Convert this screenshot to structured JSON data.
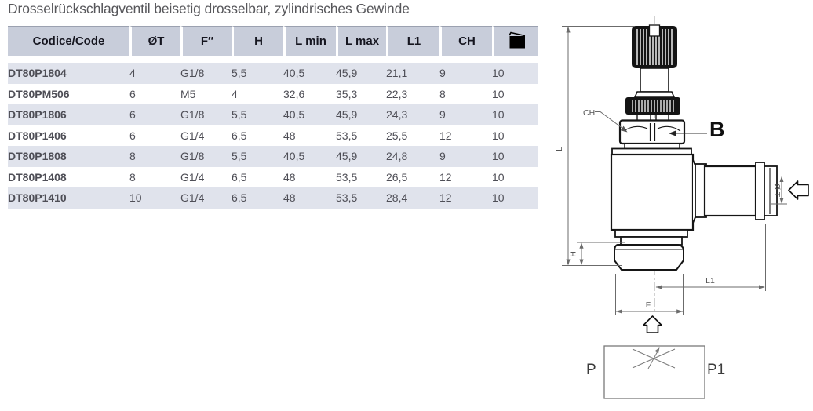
{
  "title": "Drosselrückschlagventil beisetig drosselbar, zylindrisches Gewinde",
  "table": {
    "columns": [
      "Codice/Code",
      "ØT",
      "F″",
      "H",
      "L min",
      "L max",
      "L1",
      "CH"
    ],
    "qty_column_icon": "package-icon",
    "rows": [
      [
        "DT80P1804",
        "4",
        "G1/8",
        "5,5",
        "40,5",
        "45,9",
        "21,1",
        "9",
        "10"
      ],
      [
        "DT80PM506",
        "6",
        "M5",
        "4",
        "32,6",
        "35,3",
        "22,3",
        "8",
        "10"
      ],
      [
        "DT80P1806",
        "6",
        "G1/8",
        "5,5",
        "40,5",
        "45,9",
        "24,3",
        "9",
        "10"
      ],
      [
        "DT80P1406",
        "6",
        "G1/4",
        "6,5",
        "48",
        "53,5",
        "25,5",
        "12",
        "10"
      ],
      [
        "DT80P1808",
        "8",
        "G1/8",
        "5,5",
        "40,5",
        "45,9",
        "24,8",
        "9",
        "10"
      ],
      [
        "DT80P1408",
        "8",
        "G1/4",
        "6,5",
        "48",
        "53,5",
        "26,5",
        "12",
        "10"
      ],
      [
        "DT80P1410",
        "10",
        "G1/4",
        "6,5",
        "48",
        "53,5",
        "28,4",
        "12",
        "10"
      ]
    ]
  },
  "drawing": {
    "labels": {
      "ch": "CH",
      "b": "B",
      "l": "L",
      "h": "H",
      "l1": "L1",
      "f": "F",
      "diameter": "Ø T",
      "p": "P",
      "p1": "P1"
    }
  },
  "colors": {
    "header_bg": "#c8cdda",
    "row_shade": "#e0e3ec",
    "title_text": "#57575b",
    "dimension_gray": "#6b6b6b",
    "drawing_ink": "#161616"
  }
}
